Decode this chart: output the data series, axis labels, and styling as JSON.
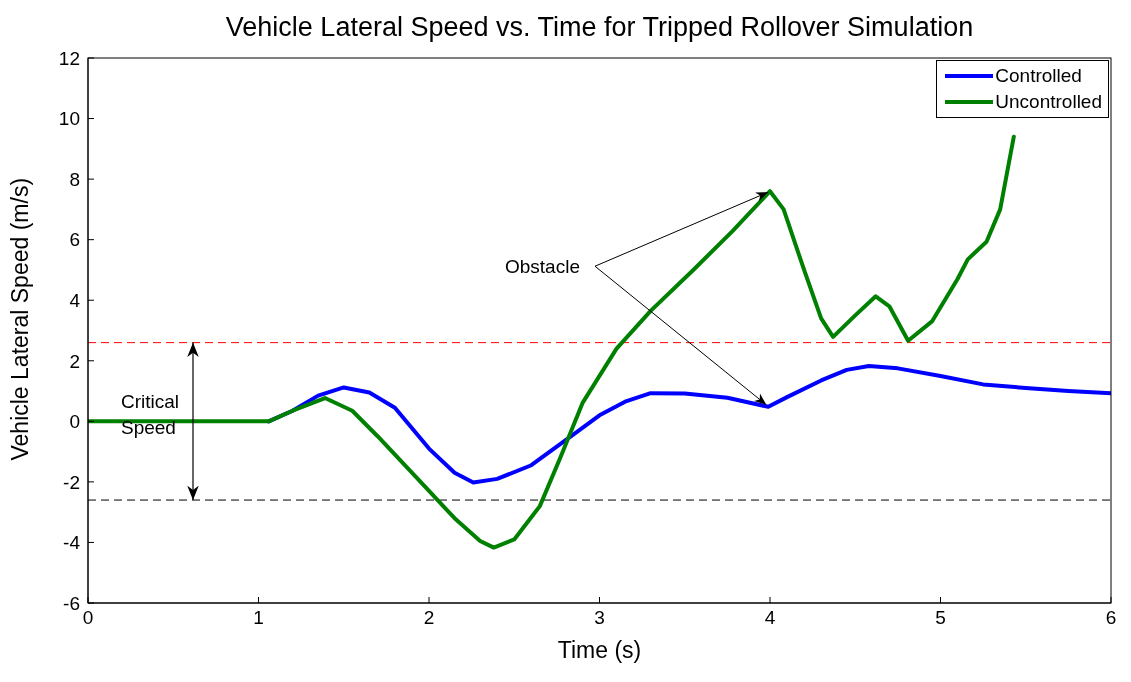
{
  "chart_data": {
    "type": "line",
    "title": "Vehicle Lateral Speed vs. Time for Tripped Rollover Simulation",
    "xlabel": "Time (s)",
    "ylabel": "Vehicle Lateral Speed (m/s)",
    "xlim": [
      0,
      6
    ],
    "xticks": [
      0,
      1,
      2,
      3,
      4,
      5,
      6
    ],
    "ylim": [
      -6,
      12
    ],
    "yticks": [
      -6,
      -4,
      -2,
      0,
      2,
      4,
      6,
      8,
      10,
      12
    ],
    "grid": false,
    "legend": "top right",
    "marker": "none",
    "line_style": "solid",
    "series": [
      {
        "name": "Controlled",
        "color": "#0000ff",
        "x": [
          1.06,
          1.2,
          1.35,
          1.5,
          1.65,
          1.8,
          2.0,
          2.15,
          2.26,
          2.4,
          2.6,
          2.85,
          3.0,
          3.15,
          3.3,
          3.5,
          3.75,
          3.99,
          4.1,
          4.3,
          4.45,
          4.58,
          4.75,
          5.0,
          5.25,
          5.5,
          5.75,
          6.0
        ],
        "values": [
          0,
          0.35,
          0.85,
          1.12,
          0.95,
          0.45,
          -0.9,
          -1.7,
          -2.02,
          -1.9,
          -1.45,
          -0.42,
          0.2,
          0.65,
          0.93,
          0.92,
          0.78,
          0.48,
          0.8,
          1.35,
          1.7,
          1.83,
          1.75,
          1.5,
          1.22,
          1.1,
          1.0,
          0.93
        ]
      },
      {
        "name": "Uncontrolled",
        "color": "#008000",
        "x": [
          0,
          0.5,
          1.06,
          1.2,
          1.39,
          1.55,
          1.7,
          1.85,
          2.0,
          2.15,
          2.3,
          2.38,
          2.5,
          2.65,
          2.77,
          2.9,
          3.1,
          3.3,
          3.55,
          3.78,
          4.0,
          4.08,
          4.2,
          4.3,
          4.37,
          4.5,
          4.62,
          4.7,
          4.81,
          4.95,
          5.1,
          5.16,
          5.27,
          5.35,
          5.43
        ],
        "values": [
          0,
          0,
          0,
          0.35,
          0.77,
          0.35,
          -0.5,
          -1.4,
          -2.3,
          -3.2,
          -3.95,
          -4.17,
          -3.9,
          -2.8,
          -1.2,
          0.6,
          2.4,
          3.65,
          5.0,
          6.28,
          7.6,
          7.0,
          5.0,
          3.4,
          2.79,
          3.5,
          4.13,
          3.8,
          2.66,
          3.3,
          4.7,
          5.35,
          5.93,
          7.0,
          9.4
        ]
      }
    ],
    "ref_lines": [
      {
        "axis": "y",
        "value": 2.6,
        "color": "#ff0000",
        "line_style": "dashed"
      },
      {
        "axis": "y",
        "value": -2.6,
        "color": "#000000",
        "line_style": "dashed"
      }
    ],
    "annotations": [
      "Critical Speed",
      {
        "text": "Obstacle",
        "x": 4,
        "y": 7.6
      }
    ]
  }
}
